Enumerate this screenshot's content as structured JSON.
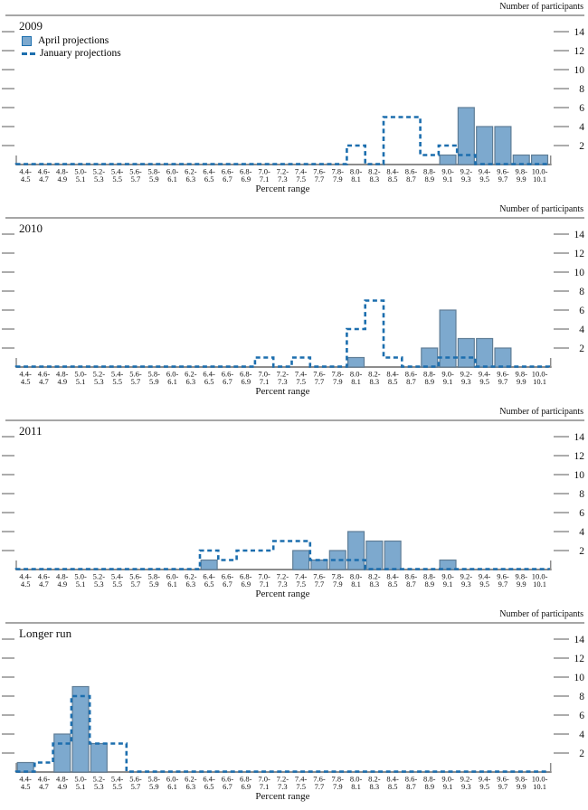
{
  "figure": {
    "right_axis_label": "Number of participants",
    "x_axis_label": "Percent range",
    "legend": {
      "april": "April projections",
      "january": "January projections"
    },
    "colors": {
      "bar_fill": "#7da9ce",
      "bar_border": "#5f7d96",
      "january_line": "#1c6eae",
      "axis": "#8c8c8c",
      "tick": "#909090",
      "panel_border": "#a6a6a6"
    }
  },
  "chart_data": {
    "type": "bar",
    "subtype": "histogram-distribution-with-dashed-outline",
    "xlabel": "Percent range",
    "ylabel": "Number of participants",
    "ylim": [
      0,
      15
    ],
    "yticks": [
      2,
      4,
      6,
      8,
      10,
      12,
      14
    ],
    "legend_entries": [
      "April projections",
      "January projections"
    ],
    "legend_position": "top-left of first panel only",
    "categories": [
      [
        "4.4-",
        "4.5"
      ],
      [
        "4.6-",
        "4.7"
      ],
      [
        "4.8-",
        "4.9"
      ],
      [
        "5.0-",
        "5.1"
      ],
      [
        "5.2-",
        "5.3"
      ],
      [
        "5.4-",
        "5.5"
      ],
      [
        "5.6-",
        "5.7"
      ],
      [
        "5.8-",
        "5.9"
      ],
      [
        "6.0-",
        "6.1"
      ],
      [
        "6.2-",
        "6.3"
      ],
      [
        "6.4-",
        "6.5"
      ],
      [
        "6.6-",
        "6.7"
      ],
      [
        "6.8-",
        "6.9"
      ],
      [
        "7.0-",
        "7.1"
      ],
      [
        "7.2-",
        "7.3"
      ],
      [
        "7.4-",
        "7.5"
      ],
      [
        "7.6-",
        "7.7"
      ],
      [
        "7.8-",
        "7.9"
      ],
      [
        "8.0-",
        "8.1"
      ],
      [
        "8.2-",
        "8.3"
      ],
      [
        "8.4-",
        "8.5"
      ],
      [
        "8.6-",
        "8.7"
      ],
      [
        "8.8-",
        "8.9"
      ],
      [
        "9.0-",
        "9.1"
      ],
      [
        "9.2-",
        "9.3"
      ],
      [
        "9.4-",
        "9.5"
      ],
      [
        "9.6-",
        "9.7"
      ],
      [
        "9.8-",
        "9.9"
      ],
      [
        "10.0-",
        "10.1"
      ]
    ],
    "panels": [
      {
        "title": "2009",
        "series": [
          {
            "name": "April projections",
            "values": [
              0,
              0,
              0,
              0,
              0,
              0,
              0,
              0,
              0,
              0,
              0,
              0,
              0,
              0,
              0,
              0,
              0,
              0,
              0,
              0,
              0,
              0,
              0,
              1,
              6,
              4,
              4,
              1,
              1
            ]
          },
          {
            "name": "January projections",
            "values": [
              0,
              0,
              0,
              0,
              0,
              0,
              0,
              0,
              0,
              0,
              0,
              0,
              0,
              0,
              0,
              0,
              0,
              0,
              2,
              0,
              5,
              5,
              1,
              2,
              1,
              0,
              0,
              0,
              0
            ]
          }
        ]
      },
      {
        "title": "2010",
        "series": [
          {
            "name": "April projections",
            "values": [
              0,
              0,
              0,
              0,
              0,
              0,
              0,
              0,
              0,
              0,
              0,
              0,
              0,
              0,
              0,
              0,
              0,
              0,
              1,
              0,
              0,
              0,
              2,
              6,
              3,
              3,
              2,
              0,
              0
            ]
          },
          {
            "name": "January projections",
            "values": [
              0,
              0,
              0,
              0,
              0,
              0,
              0,
              0,
              0,
              0,
              0,
              0,
              0,
              1,
              0,
              1,
              0,
              0,
              4,
              7,
              1,
              0,
              0,
              1,
              1,
              0,
              0,
              0,
              0
            ]
          }
        ]
      },
      {
        "title": "2011",
        "series": [
          {
            "name": "April projections",
            "values": [
              0,
              0,
              0,
              0,
              0,
              0,
              0,
              0,
              0,
              0,
              1,
              0,
              0,
              0,
              0,
              2,
              1,
              2,
              4,
              3,
              3,
              0,
              0,
              1,
              0,
              0,
              0,
              0,
              0
            ]
          },
          {
            "name": "January projections",
            "values": [
              0,
              0,
              0,
              0,
              0,
              0,
              0,
              0,
              0,
              0,
              2,
              1,
              2,
              2,
              3,
              3,
              1,
              1,
              1,
              0,
              0,
              0,
              0,
              0,
              0,
              0,
              0,
              0,
              0
            ]
          }
        ]
      },
      {
        "title": "Longer run",
        "series": [
          {
            "name": "April projections",
            "values": [
              1,
              0,
              4,
              9,
              3,
              0,
              0,
              0,
              0,
              0,
              0,
              0,
              0,
              0,
              0,
              0,
              0,
              0,
              0,
              0,
              0,
              0,
              0,
              0,
              0,
              0,
              0,
              0,
              0
            ]
          },
          {
            "name": "January projections",
            "values": [
              0,
              1,
              3,
              8,
              3,
              3,
              0,
              0,
              0,
              0,
              0,
              0,
              0,
              0,
              0,
              0,
              0,
              0,
              0,
              0,
              0,
              0,
              0,
              0,
              0,
              0,
              0,
              0,
              0
            ]
          }
        ]
      }
    ]
  }
}
